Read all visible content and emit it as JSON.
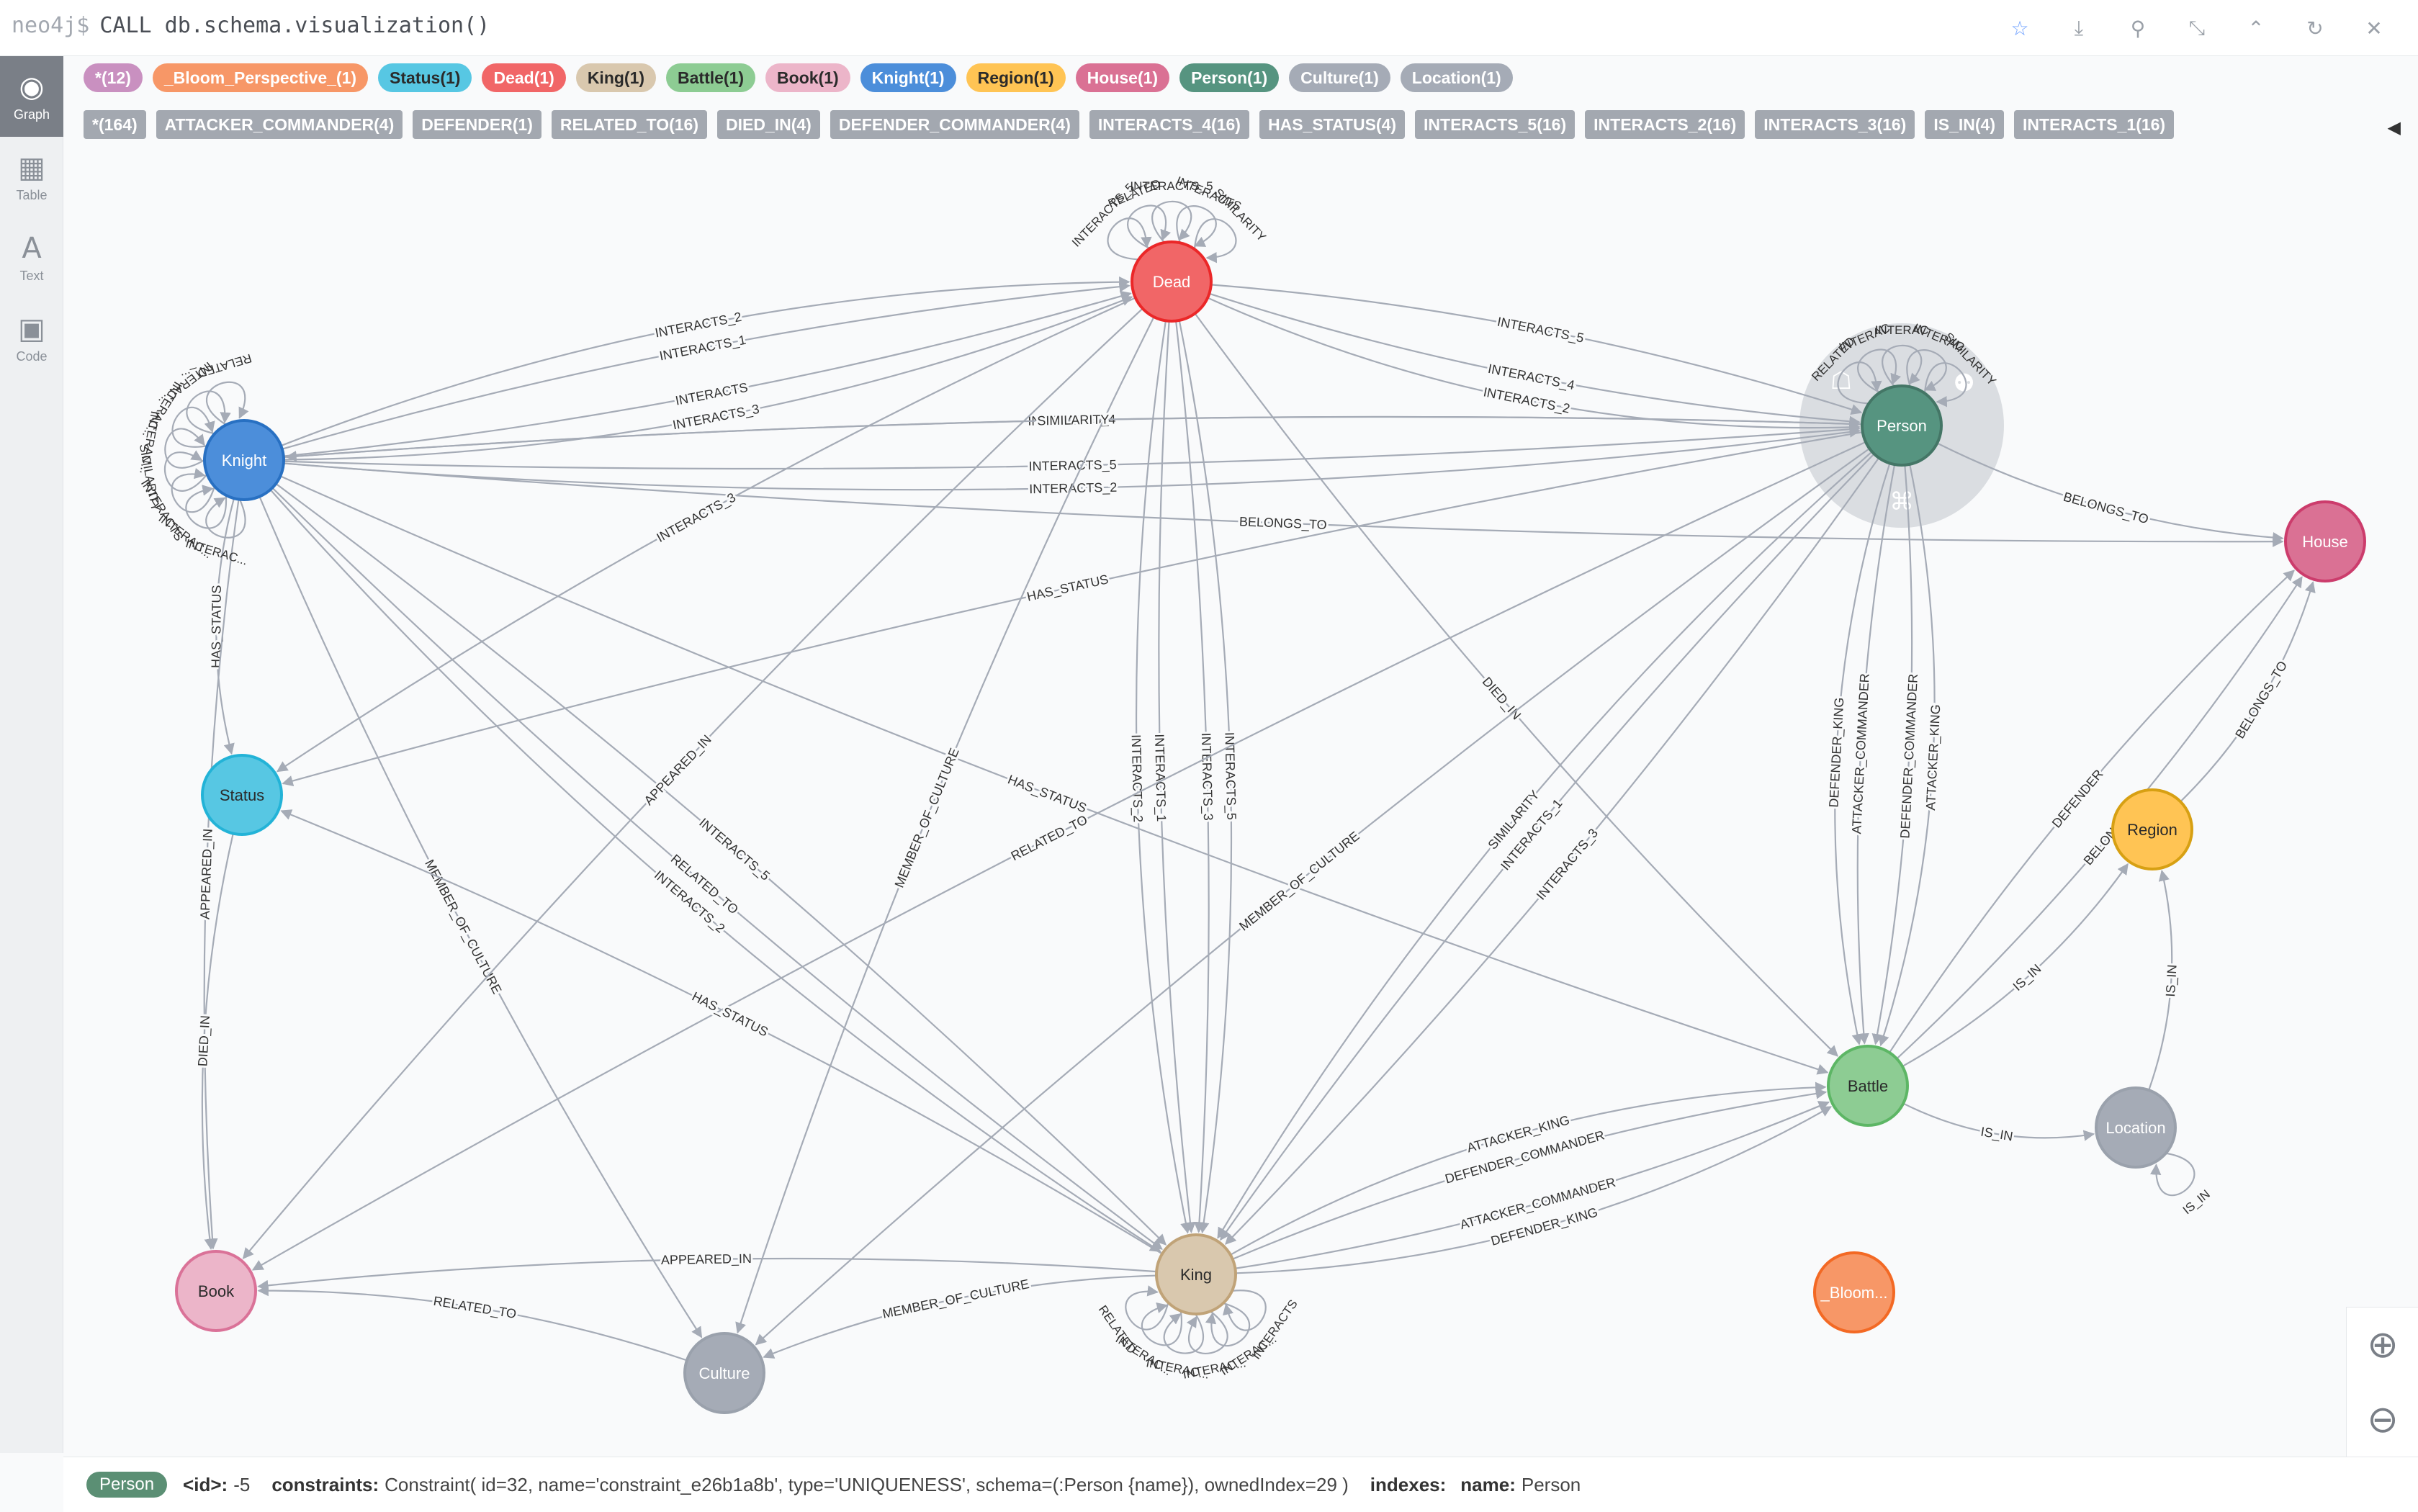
{
  "query": {
    "prompt": "neo4j$",
    "command": "CALL db.schema.visualization()"
  },
  "toolbar_icons": [
    "star-icon",
    "download-icon",
    "pin-icon",
    "collapse-icon",
    "chevron-up-icon",
    "refresh-icon",
    "close-icon"
  ],
  "sidebar": {
    "items": [
      {
        "label": "Graph",
        "glyph": "◉",
        "active": true
      },
      {
        "label": "Table",
        "glyph": "▦",
        "active": false
      },
      {
        "label": "Text",
        "glyph": "A",
        "active": false
      },
      {
        "label": "Code",
        "glyph": "▣",
        "active": false
      }
    ]
  },
  "node_labels": [
    {
      "text": "*(12)",
      "bg": "#c990c0",
      "fg": "#ffffff"
    },
    {
      "text": "_Bloom_Perspective_(1)",
      "bg": "#f79767",
      "fg": "#ffffff"
    },
    {
      "text": "Status(1)",
      "bg": "#57c7e3",
      "fg": "#2a2a2a"
    },
    {
      "text": "Dead(1)",
      "bg": "#f16667",
      "fg": "#ffffff"
    },
    {
      "text": "King(1)",
      "bg": "#d9c8ae",
      "fg": "#2a2a2a"
    },
    {
      "text": "Battle(1)",
      "bg": "#8dcc93",
      "fg": "#2a2a2a"
    },
    {
      "text": "Book(1)",
      "bg": "#ecb5c9",
      "fg": "#2a2a2a"
    },
    {
      "text": "Knight(1)",
      "bg": "#4c8eda",
      "fg": "#ffffff"
    },
    {
      "text": "Region(1)",
      "bg": "#ffc454",
      "fg": "#2a2a2a"
    },
    {
      "text": "House(1)",
      "bg": "#da7194",
      "fg": "#ffffff"
    },
    {
      "text": "Person(1)",
      "bg": "#569480",
      "fg": "#ffffff"
    },
    {
      "text": "Culture(1)",
      "bg": "#a5abb6",
      "fg": "#ffffff"
    },
    {
      "text": "Location(1)",
      "bg": "#a5abb6",
      "fg": "#ffffff"
    }
  ],
  "relationship_types": [
    "*(164)",
    "ATTACKER_COMMANDER(4)",
    "DEFENDER(1)",
    "RELATED_TO(16)",
    "DIED_IN(4)",
    "DEFENDER_COMMANDER(4)",
    "INTERACTS_4(16)",
    "HAS_STATUS(4)",
    "INTERACTS_5(16)",
    "INTERACTS_2(16)",
    "INTERACTS_3(16)",
    "IS_IN(4)",
    "INTERACTS_1(16)"
  ],
  "nodes": [
    {
      "id": "Knight",
      "label": "Knight",
      "color": "#4c8eda",
      "stroke": "#2870c2",
      "fg": "#ffffff"
    },
    {
      "id": "Dead",
      "label": "Dead",
      "color": "#f16667",
      "stroke": "#eb2728",
      "fg": "#ffffff"
    },
    {
      "id": "Person",
      "label": "Person",
      "color": "#569480",
      "stroke": "#447666",
      "fg": "#ffffff"
    },
    {
      "id": "House",
      "label": "House",
      "color": "#da7194",
      "stroke": "#cc3c6c",
      "fg": "#ffffff"
    },
    {
      "id": "Status",
      "label": "Status",
      "color": "#57c7e3",
      "stroke": "#23b3d7",
      "fg": "#2a2a2a"
    },
    {
      "id": "Region",
      "label": "Region",
      "color": "#ffc454",
      "stroke": "#d7a013",
      "fg": "#2a2a2a"
    },
    {
      "id": "Battle",
      "label": "Battle",
      "color": "#8dcc93",
      "stroke": "#5db665",
      "fg": "#2a2a2a"
    },
    {
      "id": "Location",
      "label": "Location",
      "color": "#a5abb6",
      "stroke": "#9aa1ac",
      "fg": "#ffffff"
    },
    {
      "id": "Book",
      "label": "Book",
      "color": "#ecb5c9",
      "stroke": "#da7298",
      "fg": "#2a2a2a"
    },
    {
      "id": "King",
      "label": "King",
      "color": "#d9c8ae",
      "stroke": "#c0a378",
      "fg": "#2a2a2a"
    },
    {
      "id": "Culture",
      "label": "Culture",
      "color": "#a5abb6",
      "stroke": "#9aa1ac",
      "fg": "#ffffff"
    },
    {
      "id": "Bloom",
      "label": "_Bloom...",
      "color": "#f79767",
      "stroke": "#f36924",
      "fg": "#ffffff"
    }
  ],
  "edges": [
    {
      "from": "Knight",
      "to": "Dead",
      "label": "INTERACTS"
    },
    {
      "from": "Knight",
      "to": "Dead",
      "label": "INTERACTS_1"
    },
    {
      "from": "Knight",
      "to": "Dead",
      "label": "INTERACTS_3"
    },
    {
      "from": "Knight",
      "to": "Dead",
      "label": "INTERACTS_2"
    },
    {
      "from": "Knight",
      "to": "Person",
      "label": "INTERACTS_5"
    },
    {
      "from": "Knight",
      "to": "Person",
      "label": "INTERACTS_4"
    },
    {
      "from": "Knight",
      "to": "Person",
      "label": "INTERACTS_2"
    },
    {
      "from": "Knight",
      "to": "House",
      "label": "BELONGS_TO"
    },
    {
      "from": "Knight",
      "to": "Status",
      "label": "HAS_STATUS"
    },
    {
      "from": "Knight",
      "to": "Book",
      "label": "APPEARED_IN"
    },
    {
      "from": "Knight",
      "to": "King",
      "label": "RELATED_TO"
    },
    {
      "from": "Knight",
      "to": "King",
      "label": "INTERACTS_5"
    },
    {
      "from": "Knight",
      "to": "King",
      "label": "INTERACTS_2"
    },
    {
      "from": "Knight",
      "to": "Culture",
      "label": "MEMBER_OF_CULTURE"
    },
    {
      "from": "Knight",
      "to": "Battle",
      "label": "HAS_STATUS"
    },
    {
      "from": "Dead",
      "to": "Person",
      "label": "INTERACTS_4"
    },
    {
      "from": "Dead",
      "to": "Person",
      "label": "INTERACTS_5"
    },
    {
      "from": "Dead",
      "to": "Person",
      "label": "INTERACTS_2"
    },
    {
      "from": "Dead",
      "to": "Status",
      "label": "INTERACTS_3"
    },
    {
      "from": "Dead",
      "to": "Book",
      "label": "APPEARED_IN"
    },
    {
      "from": "Dead",
      "to": "King",
      "label": "INTERACTS_1"
    },
    {
      "from": "Dead",
      "to": "King",
      "label": "INTERACTS_3"
    },
    {
      "from": "Dead",
      "to": "King",
      "label": "INTERACTS_2"
    },
    {
      "from": "Dead",
      "to": "King",
      "label": "INTERACTS_5"
    },
    {
      "from": "Dead",
      "to": "Battle",
      "label": "DIED_IN"
    },
    {
      "from": "Dead",
      "to": "Culture",
      "label": "MEMBER_OF_CULTURE"
    },
    {
      "from": "Person",
      "to": "House",
      "label": "BELONGS_TO"
    },
    {
      "from": "Person",
      "to": "Battle",
      "label": "ATTACKER_COMMANDER"
    },
    {
      "from": "Person",
      "to": "Battle",
      "label": "DEFENDER_COMMANDER"
    },
    {
      "from": "Person",
      "to": "Battle",
      "label": "DEFENDER_KING"
    },
    {
      "from": "Person",
      "to": "Battle",
      "label": "ATTACKER_KING"
    },
    {
      "from": "Person",
      "to": "King",
      "label": "INTERACTS_1"
    },
    {
      "from": "Person",
      "to": "King",
      "label": "INTERACTS_3"
    },
    {
      "from": "Person",
      "to": "King",
      "label": "SIMILARITY"
    },
    {
      "from": "Person",
      "to": "Knight",
      "label": "SIMILARITY"
    },
    {
      "from": "Person",
      "to": "Status",
      "label": "HAS_STATUS"
    },
    {
      "from": "Person",
      "to": "Book",
      "label": "RELATED_TO"
    },
    {
      "from": "Person",
      "to": "Culture",
      "label": "MEMBER_OF_CULTURE"
    },
    {
      "from": "King",
      "to": "Battle",
      "label": "ATTACKER_COMMANDER"
    },
    {
      "from": "King",
      "to": "Battle",
      "label": "DEFENDER_COMMANDER"
    },
    {
      "from": "King",
      "to": "Battle",
      "label": "DEFENDER_KING"
    },
    {
      "from": "King",
      "to": "Battle",
      "label": "ATTACKER_KING"
    },
    {
      "from": "King",
      "to": "Book",
      "label": "APPEARED_IN"
    },
    {
      "from": "King",
      "to": "Culture",
      "label": "MEMBER_OF_CULTURE"
    },
    {
      "from": "King",
      "to": "Status",
      "label": "HAS_STATUS"
    },
    {
      "from": "Battle",
      "to": "Location",
      "label": "IS_IN"
    },
    {
      "from": "Battle",
      "to": "Region",
      "label": "IS_IN"
    },
    {
      "from": "Battle",
      "to": "House",
      "label": "BELONGS_TO"
    },
    {
      "from": "Battle",
      "to": "House",
      "label": "DEFENDER"
    },
    {
      "from": "Location",
      "to": "Region",
      "label": "IS_IN"
    },
    {
      "from": "Region",
      "to": "House",
      "label": "BELONGS_TO"
    },
    {
      "from": "Culture",
      "to": "Book",
      "label": "RELATED_TO"
    },
    {
      "from": "Status",
      "to": "Book",
      "label": "DIED_IN"
    }
  ],
  "self_loops": {
    "Knight": [
      "INTERAC...",
      "INTERAC...",
      "INTERACTS",
      "SIMILARITY",
      "INTERAC...",
      "INTERAC...",
      "INTERAC...",
      "RELATED_..."
    ],
    "Dead": [
      "INTERACTS_5",
      "RELATED",
      "INTERACTS_5",
      "INTERACTS",
      "SIMILARITY"
    ],
    "Person": [
      "RELATED",
      "INTERAC",
      "INTERAC",
      "INTERAC",
      "SIMILARITY"
    ],
    "King": [
      "INTERACTS",
      "INTERAC...",
      "INTERAC...",
      "INTERAC...",
      "INTERAC...",
      "RELATED"
    ],
    "Location": [
      "IS_IN"
    ]
  },
  "footer": {
    "label": "Person",
    "id_key": "<id>:",
    "id_value": "-5",
    "constraints_key": "constraints:",
    "constraints_value": "Constraint( id=32, name='constraint_e26b1a8b', type='UNIQUENESS', schema=(:Person {name}), ownedIndex=29 )",
    "indexes_key": "indexes:",
    "name_key": "name:",
    "name_value": "Person"
  },
  "zoom": {
    "in_icon": "zoom-in-icon",
    "out_icon": "zoom-out-icon"
  }
}
